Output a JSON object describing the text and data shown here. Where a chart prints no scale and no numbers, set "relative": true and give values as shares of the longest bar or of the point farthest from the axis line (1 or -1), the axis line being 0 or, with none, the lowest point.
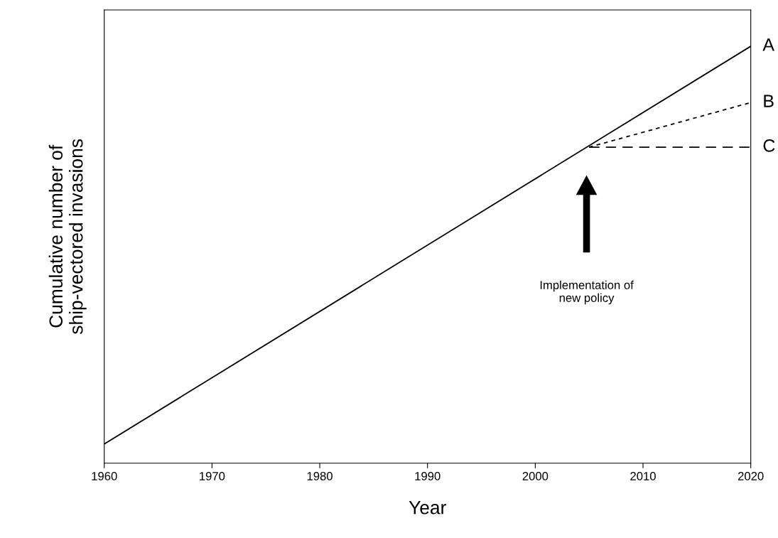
{
  "chart_data": {
    "type": "line",
    "relative": true,
    "xlabel": "Year",
    "ylabel": "Cumulative number of\nship-vectored invasions",
    "xlim": [
      1960,
      2020
    ],
    "xticks": [
      1960,
      1970,
      1980,
      1990,
      2000,
      2010,
      2020
    ],
    "tick_labels": "x",
    "grid": false,
    "legend": false,
    "marker": "none",
    "series": [
      {
        "name": "A",
        "color": "#000000",
        "line_style": "solid",
        "x": [
          1960,
          2020
        ],
        "values": [
          0.046,
          1
        ]
      },
      {
        "name": "B",
        "color": "#000000",
        "line_style": "dotted",
        "x": [
          2005,
          2020
        ],
        "values": [
          0.758,
          0.865
        ]
      },
      {
        "name": "C",
        "color": "#000000",
        "line_style": "dashed",
        "x": [
          2005,
          2020
        ],
        "values": [
          0.758,
          0.758
        ]
      }
    ],
    "annotations": [
      "Implementation of\nnew policy"
    ]
  }
}
